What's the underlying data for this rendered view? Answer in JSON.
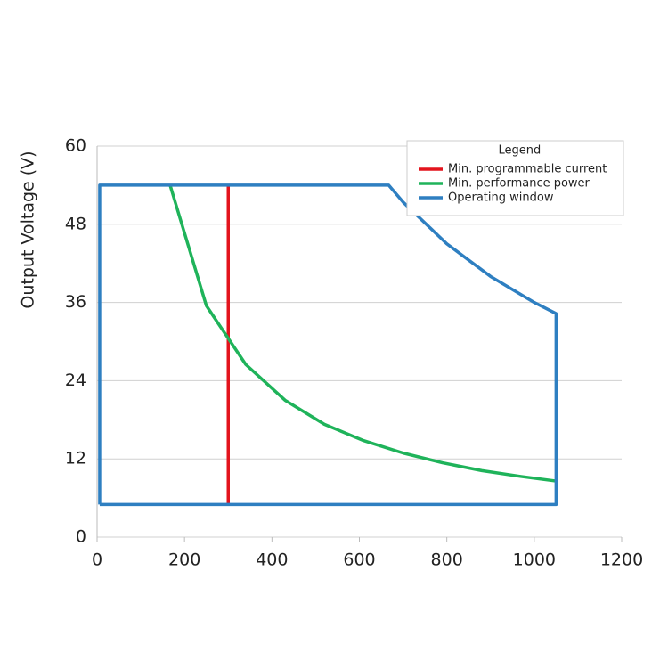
{
  "chart_data": {
    "type": "line",
    "y_label": "Output Voltage (V)",
    "xlim": [
      0,
      1200
    ],
    "xticks": [
      0,
      200,
      400,
      600,
      800,
      1000,
      1200
    ],
    "ylim": [
      0,
      60
    ],
    "yticks": [
      0,
      12,
      24,
      36,
      48,
      60
    ],
    "grid": true,
    "legend": "upper right",
    "legend_title": "Legend",
    "series": [
      {
        "name": "Min. programmable current",
        "color": "#e3141d",
        "x": [
          300,
          300
        ],
        "values": [
          5,
          54
        ]
      },
      {
        "name": "Min. performance power",
        "color": "#1fb35a",
        "x": [
          167,
          250,
          340,
          430,
          520,
          610,
          700,
          790,
          880,
          970,
          1050
        ],
        "values": [
          54,
          35.5,
          26.5,
          21,
          17.3,
          14.8,
          12.9,
          11.4,
          10.2,
          9.3,
          8.6
        ]
      },
      {
        "name": "Operating window",
        "color": "#2e7fc1",
        "x": [
          6,
          6,
          667,
          700,
          800,
          900,
          1000,
          1050,
          1050,
          6
        ],
        "values": [
          5,
          54,
          54,
          51.4,
          45,
          40,
          36,
          34.3,
          5,
          5
        ]
      }
    ]
  }
}
